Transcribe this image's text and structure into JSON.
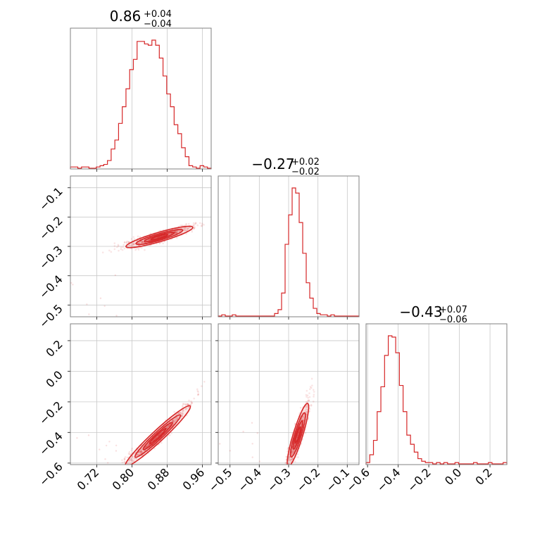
{
  "chart_data": {
    "type": "corner",
    "color": "#d62728",
    "titles": [
      {
        "value": "0.86",
        "upper": "+0.04",
        "lower": "−0.04"
      },
      {
        "value": "−0.27",
        "upper": "+0.02",
        "lower": "−0.02"
      },
      {
        "value": "−0.43",
        "upper": "+0.07",
        "lower": "−0.06"
      }
    ],
    "ranges": [
      [
        0.66,
        0.98
      ],
      [
        -0.54,
        -0.06
      ],
      [
        -0.61,
        0.31
      ]
    ],
    "ticks": [
      {
        "values": [
          0.72,
          0.8,
          0.88,
          0.96
        ],
        "labels": [
          "0.72",
          "0.80",
          "0.88",
          "0.96"
        ]
      },
      {
        "values": [
          -0.5,
          -0.4,
          -0.3,
          -0.2,
          -0.1
        ],
        "labels": [
          "−0.5",
          "−0.4",
          "−0.3",
          "−0.2",
          "−0.1"
        ]
      },
      {
        "values": [
          -0.6,
          -0.4,
          -0.2,
          0.0,
          0.2
        ],
        "labels": [
          "−0.6",
          "−0.4",
          "−0.2",
          "0.0",
          "0.2"
        ]
      }
    ],
    "histograms": [
      {
        "param": 0,
        "bins": [
          0.66,
          0.98
        ],
        "counts": [
          1,
          1,
          0,
          1,
          1,
          0,
          0,
          1,
          2,
          3,
          6,
          15,
          22,
          35,
          48,
          62,
          77,
          85,
          99,
          99,
          97,
          96,
          100,
          96,
          86,
          72,
          58,
          48,
          34,
          27,
          16,
          9,
          2,
          1,
          0,
          2,
          1,
          0
        ]
      },
      {
        "param": 1,
        "bins": [
          -0.54,
          -0.06
        ],
        "counts": [
          0,
          1,
          0,
          0,
          1,
          0,
          0,
          0,
          0,
          0,
          0,
          0,
          0,
          0,
          0,
          0,
          2,
          5,
          18,
          56,
          79,
          100,
          96,
          73,
          49,
          26,
          14,
          6,
          2,
          1,
          1,
          0,
          1,
          0,
          0,
          0,
          0,
          0,
          0,
          0
        ]
      },
      {
        "param": 2,
        "bins": [
          -0.61,
          0.31
        ],
        "counts": [
          1,
          7,
          18,
          40,
          59,
          83,
          98,
          97,
          85,
          60,
          40,
          22,
          15,
          9,
          4,
          2,
          1,
          1,
          0,
          1,
          0,
          1,
          0,
          0,
          1,
          0,
          0,
          0,
          0,
          1,
          0,
          0,
          0,
          1,
          0,
          0,
          0,
          1
        ]
      }
    ],
    "grid": true
  }
}
